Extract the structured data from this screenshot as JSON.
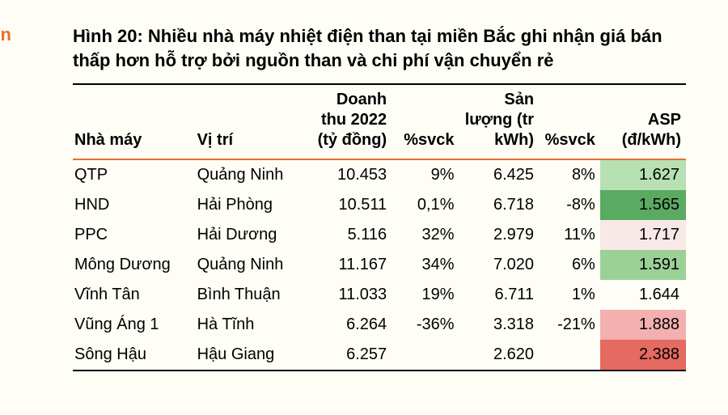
{
  "stray_char": "n",
  "title": "Hình 20: Nhiều nhà máy nhiệt điện than tại miền Bắc ghi nhận giá bán thấp hơn hỗ trợ bởi nguồn than và chi phí vận chuyển rẻ",
  "columns": {
    "plant": "Nhà máy",
    "location": "Vị trí",
    "revenue": "Doanh thu 2022 (tỷ đồng)",
    "svck1": "%svck",
    "output": "Sản lượng (tr kWh)",
    "svck2": "%svck",
    "asp": "ASP (đ/kWh)"
  },
  "rows": [
    {
      "plant": "QTP",
      "location": "Quảng Ninh",
      "revenue": "10.453",
      "svck1": "9%",
      "output": "6.425",
      "svck2": "8%",
      "asp": "1.627",
      "asp_bg": "#b7e0b3"
    },
    {
      "plant": "HND",
      "location": "Hải Phòng",
      "revenue": "10.511",
      "svck1": "0,1%",
      "output": "6.718",
      "svck2": "-8%",
      "asp": "1.565",
      "asp_bg": "#5aaa61"
    },
    {
      "plant": "PPC",
      "location": "Hải Dương",
      "revenue": "5.116",
      "svck1": "32%",
      "output": "2.979",
      "svck2": "11%",
      "asp": "1.717",
      "asp_bg": "#f9e8e8"
    },
    {
      "plant": "Mông Dương",
      "location": "Quảng Ninh",
      "revenue": "11.167",
      "svck1": "34%",
      "output": "7.020",
      "svck2": "6%",
      "asp": "1.591",
      "asp_bg": "#9bd197"
    },
    {
      "plant": "Vĩnh Tân",
      "location": "Bình Thuận",
      "revenue": "11.033",
      "svck1": "19%",
      "output": "6.711",
      "svck2": "1%",
      "asp": "1.644",
      "asp_bg": "#fffef6"
    },
    {
      "plant": "Vũng Áng 1",
      "location": "Hà Tĩnh",
      "revenue": "6.264",
      "svck1": "-36%",
      "output": "3.318",
      "svck2": "-21%",
      "asp": "1.888",
      "asp_bg": "#f3b0af"
    },
    {
      "plant": "Sông Hậu",
      "location": "Hậu Giang",
      "revenue": "6.257",
      "svck1": "",
      "output": "2.620",
      "svck2": "",
      "asp": "2.388",
      "asp_bg": "#e46a62"
    }
  ],
  "style": {
    "background": "#fffef6",
    "accent": "#e8702a",
    "border": "#000000",
    "font_size_body": 20,
    "font_size_title": 22
  }
}
